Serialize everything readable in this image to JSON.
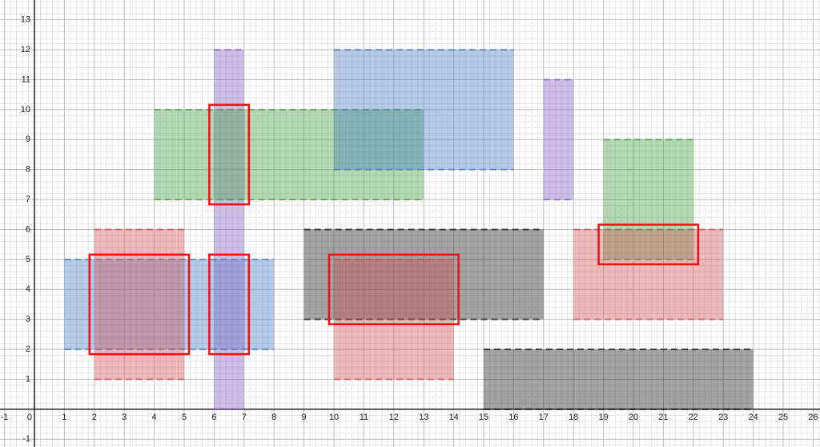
{
  "chart_data": {
    "type": "rectangles",
    "xlim": [
      -1.15,
      26.23
    ],
    "ylim": [
      -1.26,
      13.66
    ],
    "xticks": [
      -1,
      0,
      1,
      2,
      3,
      4,
      5,
      6,
      7,
      8,
      9,
      10,
      11,
      12,
      13,
      14,
      15,
      16,
      17,
      18,
      19,
      20,
      21,
      22,
      23,
      24,
      25,
      26
    ],
    "yticks": [
      -1,
      1,
      2,
      3,
      4,
      5,
      6,
      7,
      8,
      9,
      10,
      11,
      12,
      13
    ],
    "grid": true,
    "rectangles": [
      {
        "x": [
          1,
          8
        ],
        "y": [
          2,
          5
        ],
        "color": "#3f77c0"
      },
      {
        "x": [
          2,
          5
        ],
        "y": [
          1,
          6
        ],
        "color": "#d0484a"
      },
      {
        "x": [
          6,
          7
        ],
        "y": [
          0,
          12
        ],
        "color": "#7b57bd"
      },
      {
        "x": [
          4,
          13
        ],
        "y": [
          7,
          10
        ],
        "color": "#3a9a3a"
      },
      {
        "x": [
          10,
          16
        ],
        "y": [
          8,
          12
        ],
        "color": "#3f77c0"
      },
      {
        "x": [
          17,
          18
        ],
        "y": [
          7,
          11
        ],
        "color": "#7b57bd"
      },
      {
        "x": [
          19,
          22
        ],
        "y": [
          5,
          9
        ],
        "color": "#3a9a3a"
      },
      {
        "x": [
          18,
          23
        ],
        "y": [
          3,
          6
        ],
        "color": "#d0484a"
      },
      {
        "x": [
          9,
          17
        ],
        "y": [
          3,
          6
        ],
        "color": "#111111"
      },
      {
        "x": [
          10,
          14
        ],
        "y": [
          1,
          5
        ],
        "color": "#d0484a"
      },
      {
        "x": [
          15,
          24
        ],
        "y": [
          0,
          2
        ],
        "color": "#111111"
      }
    ],
    "highlights": [
      {
        "x": [
          2,
          5
        ],
        "y": [
          2,
          5
        ]
      },
      {
        "x": [
          6,
          7
        ],
        "y": [
          7,
          10
        ]
      },
      {
        "x": [
          6,
          7
        ],
        "y": [
          2,
          5
        ]
      },
      {
        "x": [
          10,
          14
        ],
        "y": [
          3,
          5
        ]
      },
      {
        "x": [
          19,
          22
        ],
        "y": [
          5,
          6
        ]
      }
    ],
    "highlight_color": "#ee1111"
  }
}
